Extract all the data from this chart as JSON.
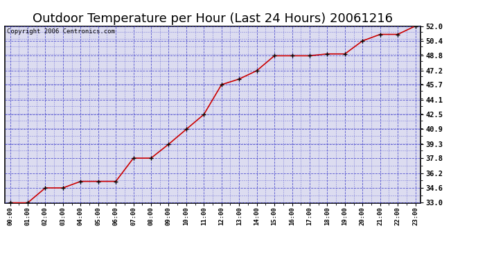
{
  "title": "Outdoor Temperature per Hour (Last 24 Hours) 20061216",
  "copyright": "Copyright 2006 Centronics.com",
  "hours": [
    "00:00",
    "01:00",
    "02:00",
    "03:00",
    "04:00",
    "05:00",
    "06:00",
    "07:00",
    "08:00",
    "09:00",
    "10:00",
    "11:00",
    "12:00",
    "13:00",
    "14:00",
    "15:00",
    "16:00",
    "17:00",
    "18:00",
    "19:00",
    "20:00",
    "21:00",
    "22:00",
    "23:00"
  ],
  "temps": [
    33.0,
    33.0,
    34.6,
    34.6,
    35.3,
    35.3,
    35.3,
    37.8,
    37.8,
    39.3,
    40.9,
    42.5,
    45.7,
    46.3,
    47.2,
    48.8,
    48.8,
    48.8,
    49.0,
    49.0,
    50.4,
    51.1,
    51.1,
    52.0
  ],
  "ylim_min": 33.0,
  "ylim_max": 52.0,
  "yticks": [
    33.0,
    34.6,
    36.2,
    37.8,
    39.3,
    40.9,
    42.5,
    44.1,
    45.7,
    47.2,
    48.8,
    50.4,
    52.0
  ],
  "line_color": "#cc0000",
  "marker_color": "#000000",
  "bg_color": "#ffffff",
  "plot_bg_color": "#dcdcf0",
  "grid_color": "#4444cc",
  "title_fontsize": 13,
  "copyright_fontsize": 6.5
}
